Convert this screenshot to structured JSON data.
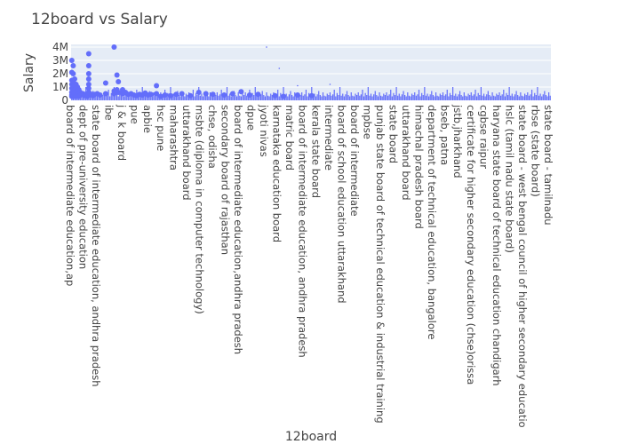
{
  "chart_data": {
    "type": "scatter",
    "title": "12board vs Salary",
    "xlabel": "12board",
    "ylabel": "Salary",
    "ylim": [
      0,
      4200000
    ],
    "yticks": [
      {
        "value": 0,
        "label": "0"
      },
      {
        "value": 1000000,
        "label": "1M"
      },
      {
        "value": 2000000,
        "label": "2M"
      },
      {
        "value": 3000000,
        "label": "3M"
      },
      {
        "value": 4000000,
        "label": "4M"
      }
    ],
    "grid": true,
    "marker_color": "#636efa",
    "plot_background": "#e5ecf6",
    "category_count": 340,
    "tick_labels": [
      {
        "index": 0,
        "label": "board of intermediate education,ap"
      },
      {
        "index": 6,
        "label": "dept of pre-university education"
      },
      {
        "index": 12,
        "label": "state  board of intermediate education, andhra pradesh"
      },
      {
        "index": 18,
        "label": "ibe"
      },
      {
        "index": 24,
        "label": "j & k board"
      },
      {
        "index": 30,
        "label": "pue"
      },
      {
        "index": 36,
        "label": "apbie"
      },
      {
        "index": 42,
        "label": "hsc pune"
      },
      {
        "index": 48,
        "label": "maharashtra"
      },
      {
        "index": 54,
        "label": "uttarakhand board"
      },
      {
        "index": 60,
        "label": "msbte (diploma in computer technology)"
      },
      {
        "index": 66,
        "label": "chse, odisha"
      },
      {
        "index": 72,
        "label": "secondary board of rajasthan"
      },
      {
        "index": 78,
        "label": "board of intermediate education,andhra pradesh"
      },
      {
        "index": 84,
        "label": "dpue"
      },
      {
        "index": 90,
        "label": "jyoti nivas"
      },
      {
        "index": 96,
        "label": "karnataka education board"
      },
      {
        "index": 102,
        "label": "matric board"
      },
      {
        "index": 108,
        "label": "board of intermediate education, andhra pradesh"
      },
      {
        "index": 114,
        "label": "kerala state board"
      },
      {
        "index": 120,
        "label": "intermediate"
      },
      {
        "index": 126,
        "label": "board of school education uttarakhand"
      },
      {
        "index": 132,
        "label": "board of intermediate"
      },
      {
        "index": 138,
        "label": "mpbse"
      },
      {
        "index": 144,
        "label": "punjab state board of technical education & industrial training"
      },
      {
        "index": 150,
        "label": "state board"
      },
      {
        "index": 156,
        "label": "uttarakhand board"
      },
      {
        "index": 162,
        "label": "himachal pradesh board"
      },
      {
        "index": 168,
        "label": "department of technical education, bangalore"
      },
      {
        "index": 174,
        "label": "bseb, patna"
      },
      {
        "index": 180,
        "label": "jstb,jharkhand"
      },
      {
        "index": 186,
        "label": "certificate for higher secondary education (chse)orissa"
      },
      {
        "index": 192,
        "label": "cgbse raipur"
      },
      {
        "index": 198,
        "label": "haryana state board of technical education chandigarh"
      },
      {
        "index": 204,
        "label": "hslc (tamil nadu state board)"
      },
      {
        "index": 210,
        "label": "state board - west bengal council of higher secondary educatio"
      },
      {
        "index": 216,
        "label": "rbse (state board)"
      },
      {
        "index": 222,
        "label": "state board - tamilnadu"
      }
    ],
    "points": [
      {
        "x": 0,
        "y": 400000
      },
      {
        "x": 0,
        "y": 900000
      },
      {
        "x": 0,
        "y": 1200000
      },
      {
        "x": 0,
        "y": 1500000
      },
      {
        "x": 0,
        "y": 2100000
      },
      {
        "x": 0,
        "y": 3000000
      },
      {
        "x": 0,
        "y": 600000
      },
      {
        "x": 0,
        "y": 300000
      },
      {
        "x": 1,
        "y": 2600000
      },
      {
        "x": 1,
        "y": 2000000
      },
      {
        "x": 1,
        "y": 1400000
      },
      {
        "x": 1,
        "y": 1000000
      },
      {
        "x": 1,
        "y": 700000
      },
      {
        "x": 1,
        "y": 300000
      },
      {
        "x": 2,
        "y": 1600000
      },
      {
        "x": 2,
        "y": 1100000
      },
      {
        "x": 2,
        "y": 800000
      },
      {
        "x": 2,
        "y": 500000
      },
      {
        "x": 3,
        "y": 1200000
      },
      {
        "x": 3,
        "y": 900000
      },
      {
        "x": 3,
        "y": 600000
      },
      {
        "x": 3,
        "y": 300000
      },
      {
        "x": 4,
        "y": 1000000
      },
      {
        "x": 4,
        "y": 700000
      },
      {
        "x": 4,
        "y": 400000
      },
      {
        "x": 5,
        "y": 800000
      },
      {
        "x": 5,
        "y": 500000
      },
      {
        "x": 5,
        "y": 300000
      },
      {
        "x": 6,
        "y": 600000
      },
      {
        "x": 6,
        "y": 400000
      },
      {
        "x": 8,
        "y": 500000
      },
      {
        "x": 9,
        "y": 350000
      },
      {
        "x": 10,
        "y": 450000
      },
      {
        "x": 11,
        "y": 300000
      },
      {
        "x": 12,
        "y": 3500000
      },
      {
        "x": 12,
        "y": 2600000
      },
      {
        "x": 12,
        "y": 2000000
      },
      {
        "x": 12,
        "y": 1600000
      },
      {
        "x": 12,
        "y": 1200000
      },
      {
        "x": 12,
        "y": 900000
      },
      {
        "x": 12,
        "y": 600000
      },
      {
        "x": 12,
        "y": 400000
      },
      {
        "x": 13,
        "y": 500000
      },
      {
        "x": 14,
        "y": 400000
      },
      {
        "x": 15,
        "y": 350000
      },
      {
        "x": 16,
        "y": 450000
      },
      {
        "x": 18,
        "y": 500000
      },
      {
        "x": 20,
        "y": 400000
      },
      {
        "x": 24,
        "y": 1300000
      },
      {
        "x": 24,
        "y": 500000
      },
      {
        "x": 30,
        "y": 4000000
      },
      {
        "x": 30,
        "y": 700000
      },
      {
        "x": 30,
        "y": 500000
      },
      {
        "x": 32,
        "y": 1900000
      },
      {
        "x": 32,
        "y": 800000
      },
      {
        "x": 33,
        "y": 1400000
      },
      {
        "x": 33,
        "y": 600000
      },
      {
        "x": 36,
        "y": 800000
      },
      {
        "x": 36,
        "y": 500000
      },
      {
        "x": 38,
        "y": 600000
      },
      {
        "x": 40,
        "y": 450000
      },
      {
        "x": 42,
        "y": 500000
      },
      {
        "x": 44,
        "y": 400000
      },
      {
        "x": 46,
        "y": 350000
      },
      {
        "x": 48,
        "y": 450000
      },
      {
        "x": 50,
        "y": 400000
      },
      {
        "x": 52,
        "y": 550000
      },
      {
        "x": 54,
        "y": 400000
      },
      {
        "x": 56,
        "y": 450000
      },
      {
        "x": 60,
        "y": 1100000
      },
      {
        "x": 60,
        "y": 500000
      },
      {
        "x": 63,
        "y": 300000
      },
      {
        "x": 66,
        "y": 400000
      },
      {
        "x": 70,
        "y": 350000
      },
      {
        "x": 74,
        "y": 450000
      },
      {
        "x": 78,
        "y": 500000
      },
      {
        "x": 84,
        "y": 350000
      },
      {
        "x": 90,
        "y": 600000
      },
      {
        "x": 95,
        "y": 500000
      },
      {
        "x": 100,
        "y": 450000
      },
      {
        "x": 108,
        "y": 400000
      },
      {
        "x": 114,
        "y": 500000
      },
      {
        "x": 120,
        "y": 650000
      },
      {
        "x": 126,
        "y": 400000
      },
      {
        "x": 132,
        "y": 450000
      },
      {
        "x": 144,
        "y": 350000
      },
      {
        "x": 150,
        "y": 300000
      },
      {
        "x": 160,
        "y": 400000
      },
      {
        "x": 170,
        "y": 350000
      }
    ],
    "minor_values": [
      300000,
      500000,
      400000,
      600000,
      350000,
      450000,
      800000,
      300000,
      550000,
      400000,
      1000000,
      350000,
      500000,
      300000,
      450000,
      700000,
      400000,
      300000,
      600000,
      350000
    ],
    "outliers": [
      {
        "x": 138,
        "y": 4000000
      },
      {
        "x": 147,
        "y": 2400000
      },
      {
        "x": 160,
        "y": 1100000
      },
      {
        "x": 183,
        "y": 1200000
      }
    ]
  }
}
